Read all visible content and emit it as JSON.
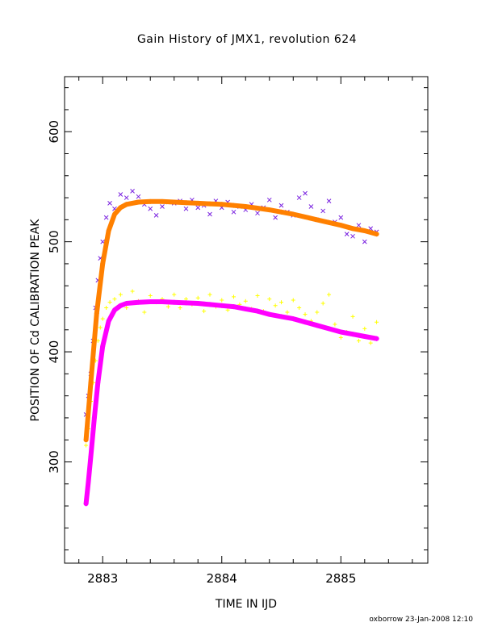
{
  "chart_data": {
    "type": "scatter",
    "title": "Gain History of JMX1, revolution 624",
    "xlabel": "TIME IN IJD",
    "ylabel": "POSITION OF Cd CALIBRATION PEAK",
    "xlim": [
      2882.68,
      2885.73
    ],
    "ylim": [
      208,
      650
    ],
    "xticks": [
      2883,
      2884,
      2885
    ],
    "xtick_labels": [
      "2883",
      "2884",
      "2885"
    ],
    "yticks": [
      300,
      400,
      500,
      600
    ],
    "ytick_labels": [
      "300",
      "400",
      "500",
      "600"
    ],
    "grid": false,
    "legend": "none",
    "footer": "oxborrow 23-Jan-2008 12:10",
    "series": [
      {
        "marker": "x",
        "color": "#7a22e0",
        "style": "scatter",
        "x": [
          2882.86,
          2882.88,
          2882.9,
          2882.92,
          2882.94,
          2882.96,
          2882.98,
          2883.0,
          2883.03,
          2883.06,
          2883.1,
          2883.15,
          2883.2,
          2883.25,
          2883.3,
          2883.35,
          2883.4,
          2883.45,
          2883.5,
          2883.55,
          2883.6,
          2883.65,
          2883.7,
          2883.75,
          2883.8,
          2883.85,
          2883.9,
          2883.95,
          2884.0,
          2884.05,
          2884.1,
          2884.15,
          2884.2,
          2884.25,
          2884.3,
          2884.35,
          2884.4,
          2884.45,
          2884.5,
          2884.55,
          2884.6,
          2884.65,
          2884.7,
          2884.75,
          2884.8,
          2884.85,
          2884.9,
          2884.95,
          2885.0,
          2885.05,
          2885.1,
          2885.15,
          2885.2,
          2885.25,
          2885.3
        ],
        "y": [
          343,
          360,
          380,
          410,
          440,
          465,
          485,
          500,
          522,
          535,
          530,
          543,
          540,
          546,
          541,
          534,
          530,
          524,
          532,
          536,
          535,
          537,
          530,
          538,
          531,
          533,
          525,
          537,
          531,
          536,
          527,
          532,
          529,
          534,
          526,
          531,
          538,
          522,
          533,
          527,
          524,
          540,
          544,
          532,
          520,
          528,
          537,
          518,
          522,
          507,
          505,
          515,
          500,
          512,
          509
        ]
      },
      {
        "marker": "+",
        "color": "#ffff00",
        "style": "scatter",
        "x": [
          2882.86,
          2882.88,
          2882.9,
          2882.92,
          2882.94,
          2882.96,
          2882.98,
          2883.0,
          2883.03,
          2883.06,
          2883.1,
          2883.15,
          2883.2,
          2883.25,
          2883.3,
          2883.35,
          2883.4,
          2883.45,
          2883.5,
          2883.55,
          2883.6,
          2883.65,
          2883.7,
          2883.75,
          2883.8,
          2883.85,
          2883.9,
          2883.95,
          2884.0,
          2884.05,
          2884.1,
          2884.15,
          2884.2,
          2884.25,
          2884.3,
          2884.35,
          2884.4,
          2884.45,
          2884.5,
          2884.55,
          2884.6,
          2884.65,
          2884.7,
          2884.75,
          2884.8,
          2884.85,
          2884.9,
          2884.95,
          2885.0,
          2885.05,
          2885.1,
          2885.15,
          2885.2,
          2885.25,
          2885.3
        ],
        "y": [
          315,
          330,
          355,
          372,
          392,
          410,
          422,
          430,
          440,
          445,
          448,
          452,
          440,
          455,
          446,
          436,
          451,
          445,
          448,
          441,
          452,
          440,
          448,
          443,
          449,
          437,
          452,
          441,
          447,
          438,
          450,
          443,
          446,
          439,
          451,
          437,
          448,
          442,
          445,
          436,
          447,
          440,
          434,
          428,
          436,
          444,
          452,
          425,
          413,
          418,
          432,
          410,
          421,
          408,
          427
        ]
      },
      {
        "name": "",
        "marker": "+",
        "color": "#ff8000",
        "style": "fit",
        "x": [
          2882.86,
          2882.9,
          2882.95,
          2883.0,
          2883.05,
          2883.1,
          2883.15,
          2883.2,
          2883.3,
          2883.4,
          2883.5,
          2883.6,
          2883.7,
          2883.8,
          2883.9,
          2884.0,
          2884.1,
          2884.2,
          2884.3,
          2884.4,
          2884.5,
          2884.6,
          2884.7,
          2884.8,
          2884.9,
          2885.0,
          2885.1,
          2885.2,
          2885.3
        ],
        "y": [
          320,
          372,
          435,
          480,
          510,
          525,
          531,
          534,
          536,
          536.5,
          536.5,
          536,
          535.5,
          535,
          534.5,
          534,
          533,
          532,
          530.5,
          529,
          527,
          525,
          522.5,
          520,
          517.5,
          515,
          512,
          510,
          507
        ]
      },
      {
        "marker": "+",
        "color": "#ff00ff",
        "style": "fit",
        "x": [
          2882.86,
          2882.88,
          2882.9,
          2882.93,
          2882.96,
          2883.0,
          2883.05,
          2883.1,
          2883.15,
          2883.2,
          2883.3,
          2883.4,
          2883.5,
          2883.6,
          2883.7,
          2883.8,
          2883.9,
          2884.0,
          2884.1,
          2884.2,
          2884.3,
          2884.4,
          2884.5,
          2884.6,
          2884.7,
          2884.8,
          2884.9,
          2885.0,
          2885.1,
          2885.2,
          2885.3
        ],
        "y": [
          262,
          282,
          305,
          340,
          372,
          405,
          428,
          438,
          442,
          444,
          445,
          445.5,
          445.5,
          445,
          444.5,
          444,
          443,
          442,
          441,
          439,
          437,
          434,
          432,
          430,
          427,
          424,
          421,
          418,
          416,
          414,
          412
        ]
      }
    ]
  }
}
